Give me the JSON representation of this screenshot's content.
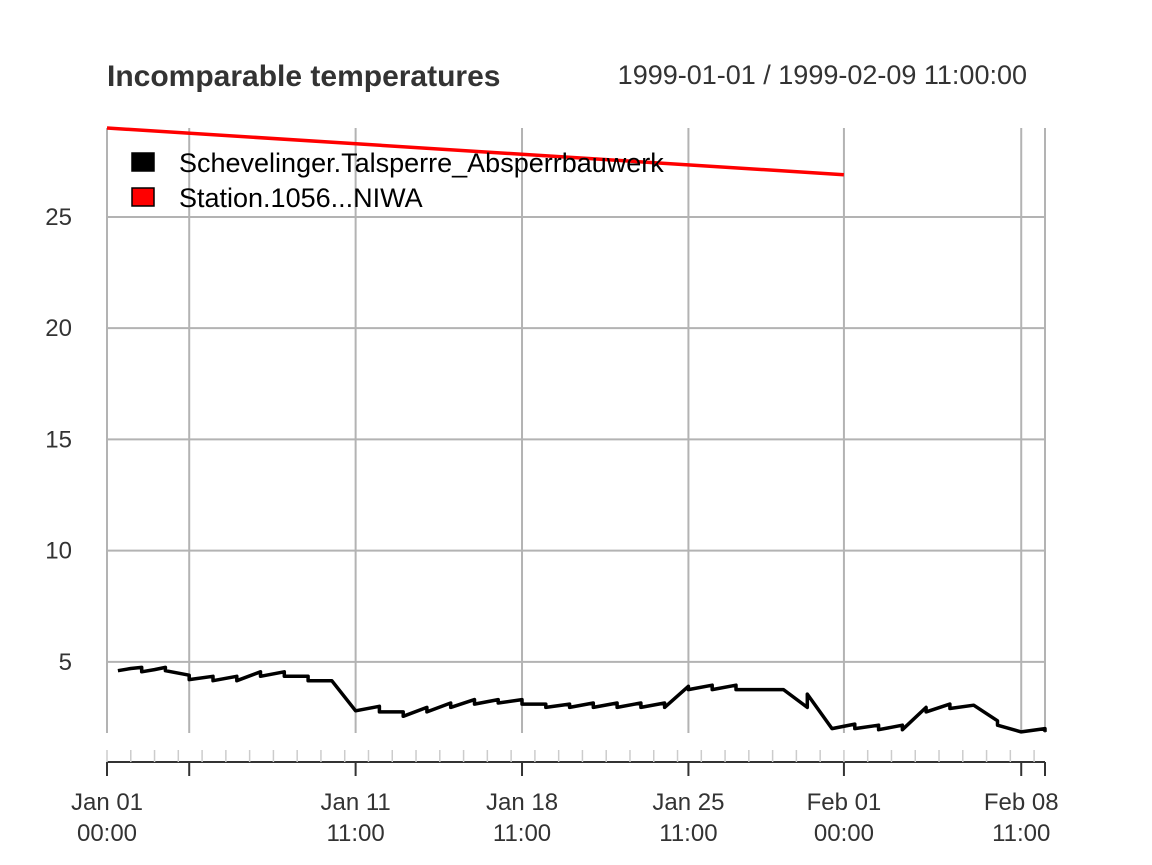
{
  "chart_data": {
    "type": "line",
    "title": "Incomparable temperatures",
    "subtitle": "1999-01-01 / 1999-02-09 11:00:00",
    "xlabel": "",
    "ylabel": "",
    "xlim": [
      "1999-01-01T00:00",
      "1999-02-09T11:00"
    ],
    "ylim": [
      1.8,
      29.0
    ],
    "grid": true,
    "legend_position": "top-left",
    "y_ticks": [
      5,
      10,
      15,
      20,
      25
    ],
    "x_ticks": [
      {
        "datetime": "1999-01-01T00:00",
        "line1": "Jan 01",
        "line2": "00:00"
      },
      {
        "datetime": "1999-01-04T11:00",
        "line1": "",
        "line2": ""
      },
      {
        "datetime": "1999-01-11T11:00",
        "line1": "Jan 11",
        "line2": "11:00"
      },
      {
        "datetime": "1999-01-18T11:00",
        "line1": "Jan 18",
        "line2": "11:00"
      },
      {
        "datetime": "1999-01-25T11:00",
        "line1": "Jan 25",
        "line2": "11:00"
      },
      {
        "datetime": "1999-02-01T00:00",
        "line1": "Feb 01",
        "line2": "00:00"
      },
      {
        "datetime": "1999-02-08T11:00",
        "line1": "Feb 08",
        "line2": "11:00"
      },
      {
        "datetime": "1999-02-09T11:00",
        "line1": "",
        "line2": ""
      }
    ],
    "series": [
      {
        "name": "Schevelinger.Talsperre_Absperrbauwerk",
        "color": "#000000",
        "points": [
          [
            "1999-01-01T11:00",
            4.6
          ],
          [
            "1999-01-02T00:00",
            4.7
          ],
          [
            "1999-01-02T11:00",
            4.75
          ],
          [
            "1999-01-02T11:00",
            4.55
          ],
          [
            "1999-01-03T00:00",
            4.65
          ],
          [
            "1999-01-03T11:00",
            4.75
          ],
          [
            "1999-01-03T11:00",
            4.6
          ],
          [
            "1999-01-04T11:00",
            4.4
          ],
          [
            "1999-01-04T11:00",
            4.2
          ],
          [
            "1999-01-05T11:00",
            4.35
          ],
          [
            "1999-01-05T11:00",
            4.15
          ],
          [
            "1999-01-06T11:00",
            4.35
          ],
          [
            "1999-01-06T11:00",
            4.15
          ],
          [
            "1999-01-07T11:00",
            4.55
          ],
          [
            "1999-01-07T11:00",
            4.35
          ],
          [
            "1999-01-08T11:00",
            4.55
          ],
          [
            "1999-01-08T11:00",
            4.35
          ],
          [
            "1999-01-09T11:00",
            4.35
          ],
          [
            "1999-01-09T11:00",
            4.15
          ],
          [
            "1999-01-10T11:00",
            4.15
          ],
          [
            "1999-01-11T11:00",
            2.8
          ],
          [
            "1999-01-12T11:00",
            3.0
          ],
          [
            "1999-01-12T11:00",
            2.75
          ],
          [
            "1999-01-13T11:00",
            2.75
          ],
          [
            "1999-01-13T11:00",
            2.55
          ],
          [
            "1999-01-14T11:00",
            2.95
          ],
          [
            "1999-01-14T11:00",
            2.75
          ],
          [
            "1999-01-15T11:00",
            3.15
          ],
          [
            "1999-01-15T11:00",
            2.95
          ],
          [
            "1999-01-16T11:00",
            3.3
          ],
          [
            "1999-01-16T11:00",
            3.1
          ],
          [
            "1999-01-17T11:00",
            3.3
          ],
          [
            "1999-01-17T11:00",
            3.15
          ],
          [
            "1999-01-18T11:00",
            3.3
          ],
          [
            "1999-01-18T11:00",
            3.1
          ],
          [
            "1999-01-19T11:00",
            3.1
          ],
          [
            "1999-01-19T11:00",
            2.95
          ],
          [
            "1999-01-20T11:00",
            3.1
          ],
          [
            "1999-01-20T11:00",
            2.95
          ],
          [
            "1999-01-21T11:00",
            3.15
          ],
          [
            "1999-01-21T11:00",
            2.95
          ],
          [
            "1999-01-22T11:00",
            3.15
          ],
          [
            "1999-01-22T11:00",
            2.95
          ],
          [
            "1999-01-23T11:00",
            3.15
          ],
          [
            "1999-01-23T11:00",
            2.95
          ],
          [
            "1999-01-24T11:00",
            3.15
          ],
          [
            "1999-01-24T11:00",
            2.95
          ],
          [
            "1999-01-25T11:00",
            3.9
          ],
          [
            "1999-01-25T11:00",
            3.75
          ],
          [
            "1999-01-26T11:00",
            3.95
          ],
          [
            "1999-01-26T11:00",
            3.75
          ],
          [
            "1999-01-27T11:00",
            3.95
          ],
          [
            "1999-01-27T11:00",
            3.75
          ],
          [
            "1999-01-29T11:00",
            3.75
          ],
          [
            "1999-01-30T11:00",
            2.95
          ],
          [
            "1999-01-30T11:00",
            3.55
          ],
          [
            "1999-01-31T12:00",
            2.0
          ],
          [
            "1999-02-01T11:00",
            2.2
          ],
          [
            "1999-02-01T11:00",
            2.0
          ],
          [
            "1999-02-02T11:00",
            2.15
          ],
          [
            "1999-02-02T11:00",
            1.95
          ],
          [
            "1999-02-03T11:00",
            2.15
          ],
          [
            "1999-02-03T11:00",
            1.95
          ],
          [
            "1999-02-04T11:00",
            2.95
          ],
          [
            "1999-02-04T11:00",
            2.75
          ],
          [
            "1999-02-05T11:00",
            3.1
          ],
          [
            "1999-02-05T11:00",
            2.9
          ],
          [
            "1999-02-06T11:00",
            3.05
          ],
          [
            "1999-02-07T11:00",
            2.35
          ],
          [
            "1999-02-07T11:00",
            2.15
          ],
          [
            "1999-02-08T11:00",
            1.85
          ],
          [
            "1999-02-09T11:00",
            2.0
          ],
          [
            "1999-02-09T11:00",
            1.85
          ]
        ]
      },
      {
        "name": "Station.1056...NIWA",
        "color": "#ff0000",
        "points": [
          [
            "1999-01-01T00:00",
            29.0
          ],
          [
            "1999-02-01T00:00",
            26.9
          ]
        ]
      }
    ]
  }
}
